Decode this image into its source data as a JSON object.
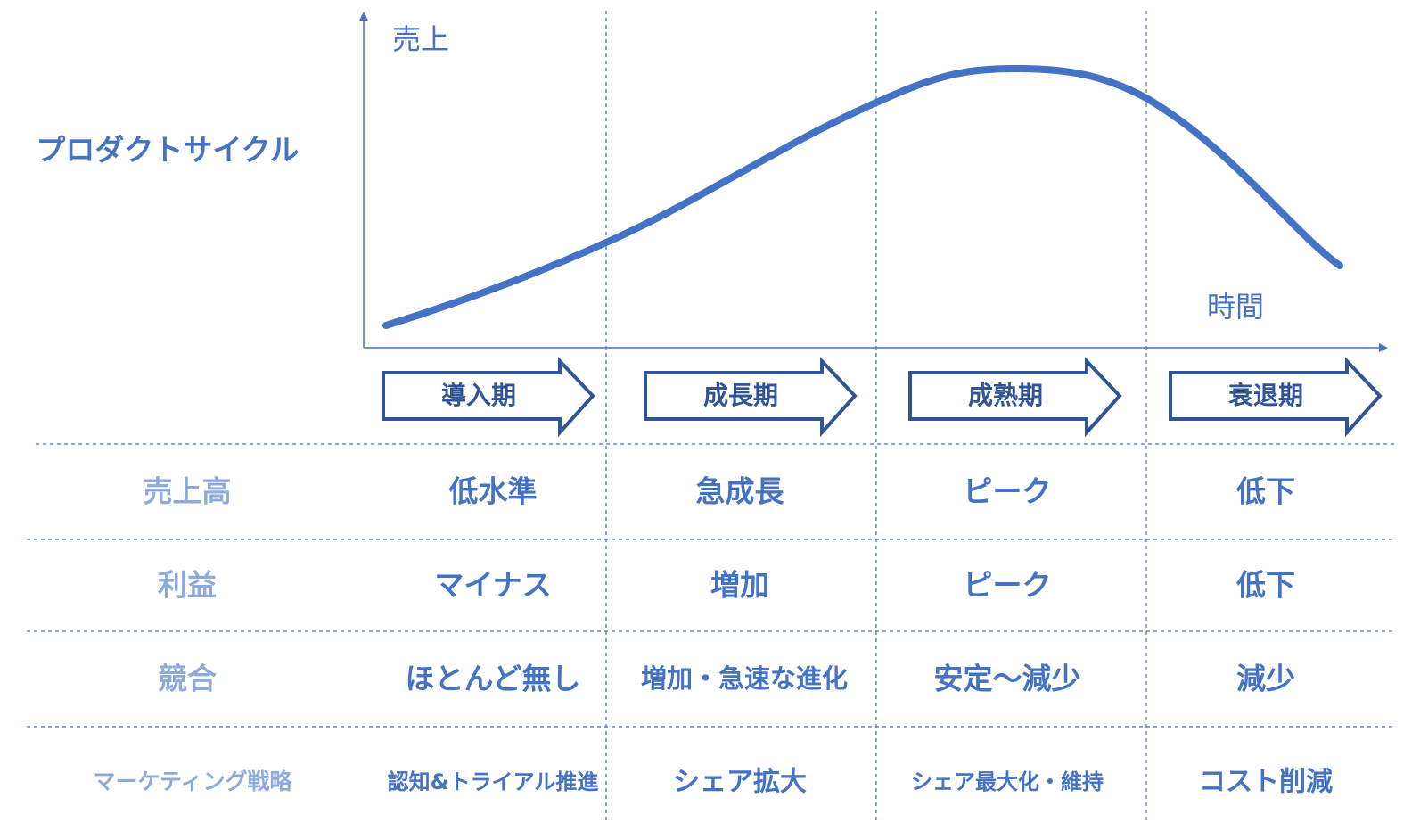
{
  "title": "プロダクトサイクル",
  "axis": {
    "y": "売上",
    "x": "時間"
  },
  "stages": [
    "導入期",
    "成長期",
    "成熟期",
    "衰退期"
  ],
  "rows": [
    {
      "label": "売上高",
      "cells": [
        "低水準",
        "急成長",
        "ピーク",
        "低下"
      ]
    },
    {
      "label": "利益",
      "cells": [
        "マイナス",
        "増加",
        "ピーク",
        "低下"
      ]
    },
    {
      "label": "競合",
      "cells": [
        "ほとんど無し",
        "増加・急速な進化",
        "安定～減少",
        "減少"
      ]
    },
    {
      "label": "マーケティング戦略",
      "cells": [
        "認知&トライアル推進",
        "シェア拡大",
        "シェア最大化・維持",
        "コスト削減"
      ]
    }
  ]
}
